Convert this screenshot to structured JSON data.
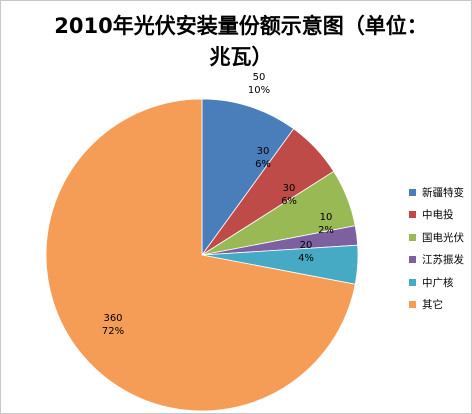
{
  "chart_data": {
    "type": "pie",
    "title": "2010年光伏安装量份额示意图（单位：兆瓦）",
    "title_lines": [
      "2010年光伏安装量份额示意图（单位：",
      "兆瓦）"
    ],
    "slices": [
      {
        "name": "新疆特变",
        "value": 50,
        "percent": "10%",
        "color": "#4a7ebb"
      },
      {
        "name": "中电投",
        "value": 30,
        "percent": "6%",
        "color": "#be4b48"
      },
      {
        "name": "国电光伏",
        "value": 30,
        "percent": "6%",
        "color": "#98b954"
      },
      {
        "name": "江苏振发",
        "value": 10,
        "percent": "2%",
        "color": "#7d60a0"
      },
      {
        "name": "中广核",
        "value": 20,
        "percent": "4%",
        "color": "#46aac5"
      },
      {
        "name": "其它",
        "value": 360,
        "percent": "72%",
        "color": "#f59d56"
      }
    ],
    "legend_position": "right",
    "start_angle": "12 o'clock, clockwise"
  }
}
